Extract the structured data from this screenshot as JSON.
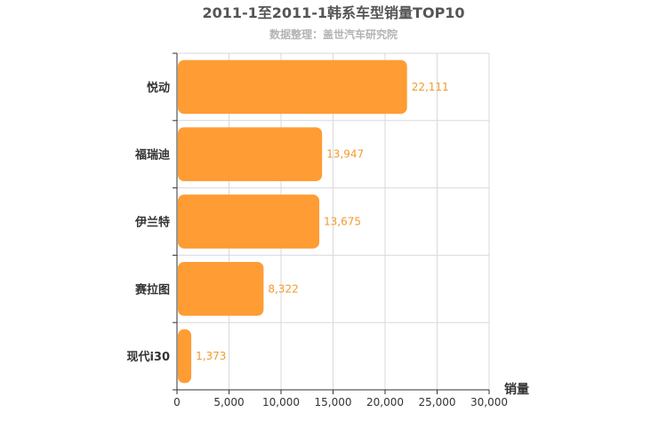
{
  "chart_data": {
    "type": "bar",
    "orientation": "horizontal",
    "title": "2011-1至2011-1韩系车型销量TOP10",
    "subtitle": "数据整理：盖世汽车研究院",
    "categories": [
      "悦动",
      "福瑞迪",
      "伊兰特",
      "赛拉图",
      "现代i30"
    ],
    "values": [
      22111,
      13947,
      13675,
      8322,
      1373
    ],
    "value_labels": [
      "22,111",
      "13,947",
      "13,675",
      "8,322",
      "1,373"
    ],
    "xlabel": "销量",
    "ylabel": "",
    "xlim": [
      0,
      30000
    ],
    "xticks": [
      0,
      5000,
      10000,
      15000,
      20000,
      25000,
      30000
    ],
    "xtick_labels": [
      "0",
      "5,000",
      "10,000",
      "15,000",
      "20,000",
      "25,000",
      "30,000"
    ],
    "grid": true,
    "bar_color": "#ff9c33",
    "label_color": "#f29a2e"
  }
}
